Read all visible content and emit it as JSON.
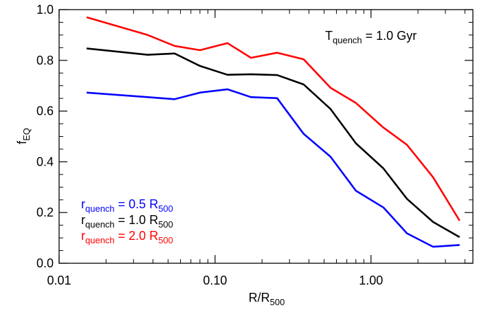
{
  "chart_data": {
    "type": "line",
    "xscale": "log",
    "xlim": [
      0.01,
      4.5
    ],
    "ylim": [
      0.0,
      1.0
    ],
    "xticks": [
      {
        "value": 0.01,
        "label": "0.01"
      },
      {
        "value": 0.1,
        "label": "0.10"
      },
      {
        "value": 1.0,
        "label": "1.00"
      }
    ],
    "yticks": [
      {
        "value": 0.0,
        "label": "0.0"
      },
      {
        "value": 0.2,
        "label": "0.2"
      },
      {
        "value": 0.4,
        "label": "0.4"
      },
      {
        "value": 0.6,
        "label": "0.6"
      },
      {
        "value": 0.8,
        "label": "0.8"
      },
      {
        "value": 1.0,
        "label": "1.0"
      }
    ],
    "xlabel": {
      "main": "R/R",
      "sub": "500"
    },
    "ylabel": {
      "main": "f",
      "sub": "EQ"
    },
    "annotation": {
      "main": "T",
      "sub": "quench",
      "rest": " = 1.0 Gyr"
    },
    "x": [
      0.015,
      0.037,
      0.055,
      0.08,
      0.12,
      0.17,
      0.25,
      0.37,
      0.55,
      0.8,
      1.2,
      1.7,
      2.5,
      3.7
    ],
    "series": [
      {
        "color": "#0000ff",
        "legend": {
          "main": "r",
          "sub": "quench",
          "mid": " = 0.5 R",
          "sub2": "500"
        },
        "values": [
          0.673,
          0.655,
          0.647,
          0.673,
          0.686,
          0.655,
          0.651,
          0.51,
          0.42,
          0.286,
          0.22,
          0.118,
          0.065,
          0.072
        ]
      },
      {
        "color": "#000000",
        "legend": {
          "main": "r",
          "sub": "quench",
          "mid": " = 1.0 R",
          "sub2": "500"
        },
        "values": [
          0.847,
          0.822,
          0.827,
          0.778,
          0.743,
          0.745,
          0.742,
          0.705,
          0.608,
          0.473,
          0.374,
          0.254,
          0.163,
          0.103
        ]
      },
      {
        "color": "#ff0000",
        "legend": {
          "main": "r",
          "sub": "quench",
          "mid": " = 2.0 R",
          "sub2": "500"
        },
        "values": [
          0.97,
          0.9,
          0.857,
          0.84,
          0.868,
          0.81,
          0.83,
          0.804,
          0.692,
          0.632,
          0.535,
          0.467,
          0.339,
          0.168
        ]
      }
    ]
  }
}
